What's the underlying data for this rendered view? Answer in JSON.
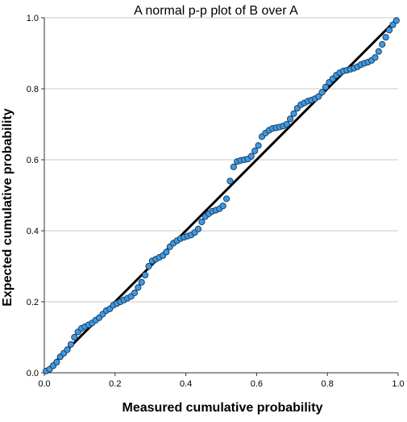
{
  "colors": {
    "background": "#ffffff",
    "grid": "#c9c9c9",
    "axis": "#333333",
    "point_fill": "#3f9ae0",
    "point_stroke": "#1d3f66",
    "reference_line": "#000000"
  },
  "chart_data": {
    "type": "scatter",
    "title": "A normal p-p plot of B over A",
    "xlabel": "Measured cumulative probability",
    "ylabel": "Expected cumulative probability",
    "xlim": [
      0,
      1
    ],
    "ylim": [
      0,
      1
    ],
    "x_ticks": [
      "0.0",
      "0.2",
      "0.4",
      "0.6",
      "0.8",
      "1.0"
    ],
    "y_ticks": [
      "0.0",
      "0.2",
      "0.4",
      "0.6",
      "0.8",
      "1.0"
    ],
    "grid": "horizontal",
    "reference_line": {
      "from": [
        0,
        0
      ],
      "to": [
        1,
        1
      ]
    },
    "points": [
      [
        0.005,
        0.005
      ],
      [
        0.015,
        0.01
      ],
      [
        0.025,
        0.02
      ],
      [
        0.035,
        0.03
      ],
      [
        0.045,
        0.045
      ],
      [
        0.055,
        0.055
      ],
      [
        0.065,
        0.065
      ],
      [
        0.075,
        0.08
      ],
      [
        0.085,
        0.1
      ],
      [
        0.095,
        0.115
      ],
      [
        0.105,
        0.125
      ],
      [
        0.115,
        0.13
      ],
      [
        0.125,
        0.135
      ],
      [
        0.135,
        0.14
      ],
      [
        0.145,
        0.148
      ],
      [
        0.155,
        0.155
      ],
      [
        0.165,
        0.165
      ],
      [
        0.175,
        0.175
      ],
      [
        0.185,
        0.18
      ],
      [
        0.195,
        0.19
      ],
      [
        0.205,
        0.195
      ],
      [
        0.215,
        0.2
      ],
      [
        0.225,
        0.205
      ],
      [
        0.235,
        0.21
      ],
      [
        0.245,
        0.215
      ],
      [
        0.255,
        0.225
      ],
      [
        0.265,
        0.24
      ],
      [
        0.275,
        0.255
      ],
      [
        0.285,
        0.275
      ],
      [
        0.295,
        0.3
      ],
      [
        0.305,
        0.315
      ],
      [
        0.315,
        0.32
      ],
      [
        0.325,
        0.325
      ],
      [
        0.335,
        0.33
      ],
      [
        0.345,
        0.34
      ],
      [
        0.355,
        0.355
      ],
      [
        0.365,
        0.365
      ],
      [
        0.375,
        0.372
      ],
      [
        0.385,
        0.378
      ],
      [
        0.395,
        0.382
      ],
      [
        0.405,
        0.385
      ],
      [
        0.415,
        0.388
      ],
      [
        0.425,
        0.395
      ],
      [
        0.435,
        0.405
      ],
      [
        0.445,
        0.425
      ],
      [
        0.455,
        0.44
      ],
      [
        0.465,
        0.448
      ],
      [
        0.475,
        0.455
      ],
      [
        0.485,
        0.458
      ],
      [
        0.495,
        0.462
      ],
      [
        0.505,
        0.47
      ],
      [
        0.515,
        0.49
      ],
      [
        0.525,
        0.54
      ],
      [
        0.535,
        0.58
      ],
      [
        0.545,
        0.595
      ],
      [
        0.555,
        0.598
      ],
      [
        0.565,
        0.6
      ],
      [
        0.575,
        0.602
      ],
      [
        0.585,
        0.61
      ],
      [
        0.595,
        0.625
      ],
      [
        0.605,
        0.64
      ],
      [
        0.615,
        0.665
      ],
      [
        0.625,
        0.675
      ],
      [
        0.635,
        0.683
      ],
      [
        0.645,
        0.688
      ],
      [
        0.655,
        0.69
      ],
      [
        0.665,
        0.692
      ],
      [
        0.675,
        0.695
      ],
      [
        0.685,
        0.7
      ],
      [
        0.695,
        0.715
      ],
      [
        0.705,
        0.73
      ],
      [
        0.715,
        0.745
      ],
      [
        0.725,
        0.755
      ],
      [
        0.735,
        0.76
      ],
      [
        0.745,
        0.765
      ],
      [
        0.755,
        0.768
      ],
      [
        0.765,
        0.772
      ],
      [
        0.775,
        0.778
      ],
      [
        0.785,
        0.79
      ],
      [
        0.795,
        0.805
      ],
      [
        0.805,
        0.818
      ],
      [
        0.815,
        0.828
      ],
      [
        0.825,
        0.838
      ],
      [
        0.835,
        0.845
      ],
      [
        0.845,
        0.85
      ],
      [
        0.855,
        0.852
      ],
      [
        0.865,
        0.855
      ],
      [
        0.875,
        0.858
      ],
      [
        0.885,
        0.862
      ],
      [
        0.895,
        0.868
      ],
      [
        0.905,
        0.872
      ],
      [
        0.915,
        0.875
      ],
      [
        0.925,
        0.88
      ],
      [
        0.935,
        0.888
      ],
      [
        0.945,
        0.905
      ],
      [
        0.955,
        0.925
      ],
      [
        0.965,
        0.945
      ],
      [
        0.975,
        0.965
      ],
      [
        0.985,
        0.98
      ],
      [
        0.995,
        0.992
      ]
    ]
  }
}
